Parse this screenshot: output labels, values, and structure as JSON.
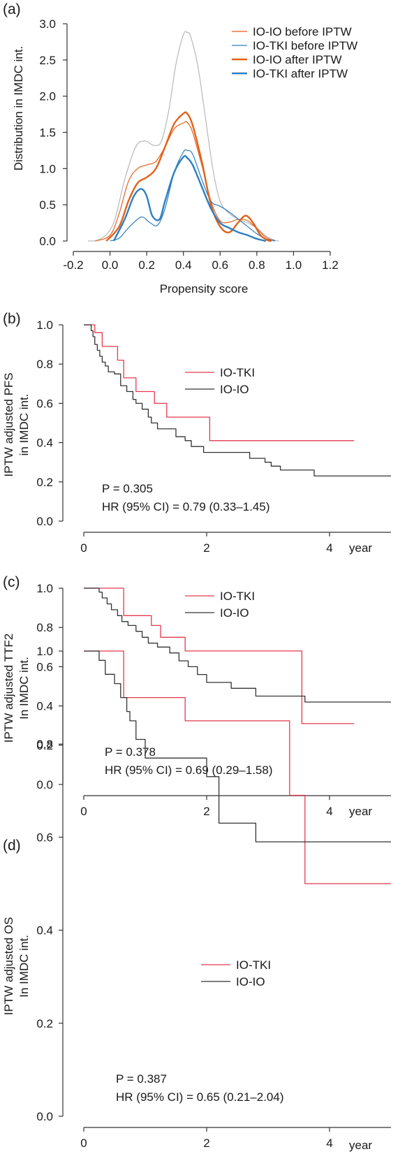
{
  "colors": {
    "grey": "#b8b8b8",
    "io_io_orange": "#e2621b",
    "io_tki_blue": "#2d7fc2",
    "io_tki_red": "#e4394f",
    "io_io_black": "#333333"
  },
  "chart_data": [
    {
      "panel": "(a)",
      "type": "line",
      "xlabel": "Propensity score",
      "ylabel": "Distribution in IMDC int.",
      "xlim": [
        -0.2,
        1.2
      ],
      "ylim": [
        0,
        3.0
      ],
      "xticks": [
        "-0.2",
        "0.0",
        "0.2",
        "0.4",
        "0.6",
        "0.8",
        "1.0",
        "1.2"
      ],
      "yticks": [
        "0.0",
        "0.5",
        "1.0",
        "1.5",
        "2.0",
        "2.5",
        "3.0"
      ],
      "legend_position": "top-right",
      "series": [
        {
          "name": "",
          "color": "#b8b8b8",
          "width": 1.2,
          "x": [
            -0.12,
            -0.05,
            0.02,
            0.08,
            0.14,
            0.19,
            0.24,
            0.28,
            0.32,
            0.36,
            0.4,
            0.42,
            0.44,
            0.48,
            0.52,
            0.56,
            0.6,
            0.65,
            0.7,
            0.75,
            0.8,
            0.85,
            0.9,
            0.92
          ],
          "y": [
            0.0,
            0.03,
            0.25,
            0.85,
            1.3,
            1.38,
            1.32,
            1.38,
            1.8,
            2.45,
            2.85,
            2.88,
            2.82,
            2.4,
            1.7,
            1.0,
            0.55,
            0.38,
            0.3,
            0.25,
            0.18,
            0.07,
            0.01,
            0.0
          ]
        },
        {
          "name": "IO-IO before IPTW",
          "color": "#e2621b",
          "width": 1.2,
          "x": [
            -0.08,
            0.0,
            0.05,
            0.1,
            0.15,
            0.2,
            0.25,
            0.3,
            0.35,
            0.4,
            0.42,
            0.45,
            0.5,
            0.55,
            0.6,
            0.65,
            0.7,
            0.75,
            0.8,
            0.85,
            0.9
          ],
          "y": [
            0.0,
            0.08,
            0.38,
            0.82,
            1.0,
            1.05,
            1.1,
            1.3,
            1.55,
            1.63,
            1.64,
            1.5,
            1.05,
            0.55,
            0.28,
            0.26,
            0.3,
            0.28,
            0.17,
            0.05,
            0.0
          ]
        },
        {
          "name": "IO-TKI before IPTW",
          "color": "#2d7fc2",
          "width": 1.2,
          "x": [
            0.0,
            0.05,
            0.1,
            0.15,
            0.18,
            0.22,
            0.26,
            0.3,
            0.35,
            0.4,
            0.42,
            0.45,
            0.5,
            0.55,
            0.6,
            0.65,
            0.7,
            0.75,
            0.8,
            0.85,
            0.9
          ],
          "y": [
            0.0,
            0.04,
            0.18,
            0.3,
            0.33,
            0.25,
            0.22,
            0.45,
            0.95,
            1.23,
            1.25,
            1.2,
            0.85,
            0.55,
            0.48,
            0.4,
            0.3,
            0.2,
            0.1,
            0.03,
            0.0
          ]
        },
        {
          "name": "IO-IO after IPTW",
          "color": "#e2621b",
          "width": 2.4,
          "x": [
            -0.02,
            0.05,
            0.1,
            0.15,
            0.2,
            0.25,
            0.3,
            0.35,
            0.4,
            0.42,
            0.45,
            0.5,
            0.55,
            0.6,
            0.65,
            0.7,
            0.74,
            0.78,
            0.82,
            0.86,
            0.88
          ],
          "y": [
            0.0,
            0.2,
            0.55,
            0.8,
            0.88,
            1.0,
            1.3,
            1.62,
            1.76,
            1.76,
            1.6,
            1.1,
            0.5,
            0.2,
            0.12,
            0.26,
            0.35,
            0.25,
            0.08,
            0.01,
            0.0
          ]
        },
        {
          "name": "IO-TKI after IPTW",
          "color": "#2d7fc2",
          "width": 2.4,
          "x": [
            0.02,
            0.08,
            0.13,
            0.17,
            0.2,
            0.23,
            0.27,
            0.3,
            0.35,
            0.4,
            0.42,
            0.45,
            0.5,
            0.55,
            0.6,
            0.65,
            0.7,
            0.75,
            0.8,
            0.85
          ],
          "y": [
            0.0,
            0.3,
            0.62,
            0.72,
            0.62,
            0.35,
            0.3,
            0.55,
            0.95,
            1.16,
            1.15,
            1.05,
            0.75,
            0.45,
            0.25,
            0.18,
            0.12,
            0.08,
            0.03,
            0.0
          ]
        }
      ]
    },
    {
      "panel": "(b)",
      "type": "line",
      "step": true,
      "xlabel": "year",
      "ylabel": [
        "IPTW adjusted PFS",
        "in IMDC int."
      ],
      "xlim": [
        0,
        5
      ],
      "ylim": [
        0,
        1.0
      ],
      "xticks": [
        "0",
        "2",
        "4"
      ],
      "yticks": [
        "0.0",
        "0.2",
        "0.4",
        "0.6",
        "0.8",
        "1.0"
      ],
      "p_value": "P = 0.305",
      "hr": "HR (95% CI) = 0.79 (0.33–1.45)",
      "series": [
        {
          "name": "IO-TKI",
          "color": "#e4394f",
          "x": [
            0,
            0.18,
            0.3,
            0.55,
            0.65,
            0.85,
            1.15,
            1.35,
            2.05,
            4.4
          ],
          "y": [
            1.0,
            0.96,
            0.89,
            0.82,
            0.73,
            0.66,
            0.6,
            0.53,
            0.41,
            0.41
          ]
        },
        {
          "name": "IO-IO",
          "color": "#333333",
          "x": [
            0,
            0.12,
            0.15,
            0.18,
            0.22,
            0.26,
            0.3,
            0.35,
            0.4,
            0.5,
            0.6,
            0.7,
            0.8,
            0.85,
            0.95,
            1.05,
            1.1,
            1.2,
            1.3,
            1.5,
            1.65,
            1.75,
            1.95,
            2.2,
            2.35,
            2.7,
            2.95,
            3.05,
            3.2,
            3.75,
            5.0
          ],
          "y": [
            1.0,
            0.97,
            0.94,
            0.9,
            0.87,
            0.84,
            0.81,
            0.79,
            0.76,
            0.75,
            0.69,
            0.66,
            0.62,
            0.6,
            0.57,
            0.53,
            0.5,
            0.47,
            0.47,
            0.43,
            0.41,
            0.38,
            0.35,
            0.35,
            0.35,
            0.32,
            0.3,
            0.28,
            0.26,
            0.23,
            0.23
          ]
        }
      ]
    },
    {
      "panel": "(c)",
      "type": "line",
      "step": true,
      "xlabel": "year",
      "ylabel": [
        "IPTW adjusted TTF2",
        "In IMDC int."
      ],
      "xlim": [
        0,
        5
      ],
      "ylim": [
        0,
        1.0
      ],
      "xticks": [
        "0",
        "2",
        "4"
      ],
      "yticks": [
        "0.0",
        "0.2",
        "0.4",
        "0.6",
        "0.8",
        "1.0"
      ],
      "p_value": "P = 0.378",
      "hr": "HR (95% CI) = 0.69 (0.29–1.58)",
      "series": [
        {
          "name": "IO-TKI",
          "color": "#e4394f",
          "x": [
            0,
            0.65,
            0.75,
            1.1,
            1.25,
            1.65,
            3.55,
            4.4
          ],
          "y": [
            1.0,
            0.86,
            0.86,
            0.81,
            0.75,
            0.68,
            0.31,
            0.31
          ]
        },
        {
          "name": "IO-IO",
          "color": "#333333",
          "x": [
            0,
            0.25,
            0.3,
            0.38,
            0.45,
            0.55,
            0.62,
            0.72,
            0.85,
            0.95,
            1.05,
            1.2,
            1.4,
            1.55,
            1.7,
            1.85,
            2.0,
            2.4,
            2.8,
            3.6,
            5.0
          ],
          "y": [
            1.0,
            0.98,
            0.95,
            0.92,
            0.89,
            0.86,
            0.83,
            0.81,
            0.78,
            0.75,
            0.72,
            0.7,
            0.67,
            0.63,
            0.6,
            0.56,
            0.52,
            0.49,
            0.45,
            0.42,
            0.42
          ]
        }
      ]
    },
    {
      "panel": "(d)",
      "type": "line",
      "step": true,
      "xlabel": "year",
      "ylabel": [
        "IPTW adjusted OS",
        "In IMDC int."
      ],
      "xlim": [
        0,
        5
      ],
      "ylim": [
        0,
        1.0
      ],
      "xticks": [
        "0",
        "2",
        "4"
      ],
      "yticks": [
        "0.0",
        "0.2",
        "0.4",
        "0.6",
        "0.8",
        "1.0"
      ],
      "p_value": "P = 0.387",
      "hr": "HR (95% CI) = 0.65 (0.21–2.04)",
      "series": [
        {
          "name": "IO-TKI",
          "color": "#e4394f",
          "x": [
            0,
            0.65,
            1.65,
            3.35,
            3.6,
            5.0
          ],
          "y": [
            1.0,
            0.9,
            0.85,
            0.69,
            0.5,
            0.5
          ]
        },
        {
          "name": "IO-IO",
          "color": "#333333",
          "x": [
            0,
            0.25,
            0.35,
            0.5,
            0.6,
            0.7,
            0.75,
            0.85,
            1.0,
            1.25,
            2.0,
            2.2,
            2.8,
            5.0
          ],
          "y": [
            1.0,
            0.98,
            0.95,
            0.93,
            0.9,
            0.87,
            0.85,
            0.81,
            0.77,
            0.77,
            0.73,
            0.63,
            0.59,
            0.59
          ]
        }
      ]
    }
  ]
}
